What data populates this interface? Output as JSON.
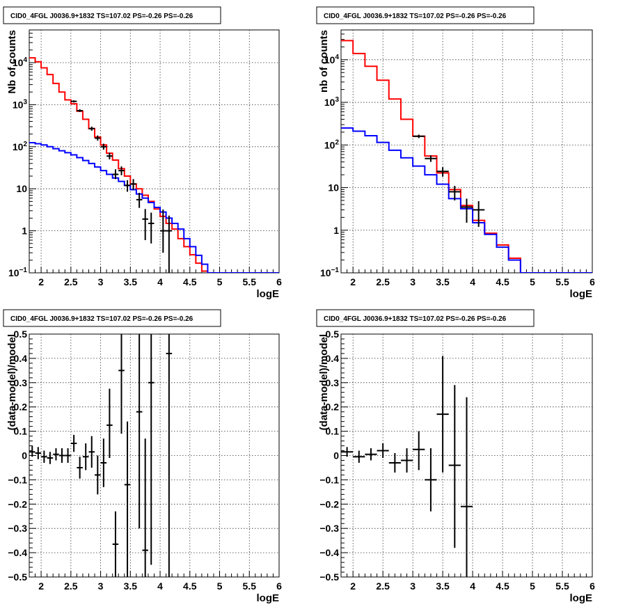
{
  "chart_data": [
    {
      "type": "line",
      "title": "CID0_4FGL J0036.9+1832 TS=107.02 PS=-0.26 PS=-0.26",
      "xlabel": "logE",
      "ylabel": "Nb of counts",
      "xlim": [
        1.8,
        6.0
      ],
      "ylim": [
        0.1,
        60000
      ],
      "yscale": "log",
      "grid": true,
      "xticks": [
        "2",
        "2.5",
        "3",
        "3.5",
        "4",
        "4.5",
        "5",
        "5.5",
        "6"
      ],
      "yticks": [
        "10^-1",
        "1",
        "10",
        "10^2",
        "10^3",
        "10^4"
      ],
      "bin_edges": [
        1.8,
        1.9,
        2.0,
        2.1,
        2.2,
        2.3,
        2.4,
        2.5,
        2.6,
        2.7,
        2.8,
        2.9,
        3.0,
        3.1,
        3.2,
        3.3,
        3.4,
        3.5,
        3.6,
        3.7,
        3.8,
        3.9,
        4.0,
        4.1,
        4.2,
        4.3,
        4.4,
        4.5,
        4.6,
        4.7,
        4.8,
        4.9,
        5.0,
        5.1,
        5.2,
        5.3,
        5.4,
        5.5,
        5.6,
        5.7,
        5.8,
        5.9,
        6.0
      ],
      "series": [
        {
          "color": "#ff0000",
          "style": "step",
          "values": [
            13000,
            10500,
            7500,
            5200,
            3200,
            2000,
            1300,
            1050,
            700,
            450,
            270,
            170,
            110,
            70,
            48,
            30,
            20,
            13,
            10,
            7,
            5,
            3.3,
            2.2,
            1.5,
            1.1,
            0.65,
            0.42,
            0.27,
            0.17,
            0.11,
            0.1,
            0.1,
            0.1,
            0.1,
            0.1,
            0.1,
            0.1,
            0.1,
            0.1,
            0.1,
            0.1,
            0.1
          ]
        },
        {
          "color": "#0000ff",
          "style": "step",
          "values": [
            125,
            118,
            110,
            100,
            90,
            80,
            72,
            64,
            55,
            47,
            40,
            33,
            27,
            22,
            18,
            15,
            12,
            9.5,
            7.5,
            6.0,
            4.7,
            3.6,
            2.8,
            2.0,
            1.5,
            1.1,
            0.65,
            0.42,
            0.26,
            0.16,
            0.1,
            0.1,
            0.1,
            0.1,
            0.1,
            0.1,
            0.1,
            0.1,
            0.1,
            0.1,
            0.1,
            0.1
          ]
        },
        {
          "color": "#000000",
          "style": "errorbar",
          "points": [
            {
              "x": 2.55,
              "y": 1200,
              "xerr": 0.05,
              "ylo": 1130,
              "yhi": 1270
            },
            {
              "x": 2.65,
              "y": 720,
              "xerr": 0.05,
              "ylo": 670,
              "yhi": 775
            },
            {
              "x": 2.85,
              "y": 270,
              "xerr": 0.05,
              "ylo": 240,
              "yhi": 300
            },
            {
              "x": 2.95,
              "y": 160,
              "xerr": 0.05,
              "ylo": 140,
              "yhi": 185
            },
            {
              "x": 3.05,
              "y": 100,
              "xerr": 0.05,
              "ylo": 85,
              "yhi": 118
            },
            {
              "x": 3.15,
              "y": 60,
              "xerr": 0.05,
              "ylo": 50,
              "yhi": 72
            },
            {
              "x": 3.25,
              "y": 22,
              "xerr": 0.05,
              "ylo": 17,
              "yhi": 29
            },
            {
              "x": 3.35,
              "y": 27,
              "xerr": 0.05,
              "ylo": 21,
              "yhi": 34
            },
            {
              "x": 3.45,
              "y": 12,
              "xerr": 0.05,
              "ylo": 8.5,
              "yhi": 16
            },
            {
              "x": 3.55,
              "y": 13,
              "xerr": 0.05,
              "ylo": 9.5,
              "yhi": 17
            },
            {
              "x": 3.65,
              "y": 5.5,
              "xerr": 0.05,
              "ylo": 3.5,
              "yhi": 8
            },
            {
              "x": 3.75,
              "y": 1.9,
              "xerr": 0.05,
              "ylo": 0.6,
              "yhi": 3.3
            },
            {
              "x": 3.85,
              "y": 1.5,
              "xerr": 0.05,
              "ylo": 0.5,
              "yhi": 2.7
            },
            {
              "x": 4.05,
              "y": 1.0,
              "xerr": 0.05,
              "ylo": 0.3,
              "yhi": 3.2
            },
            {
              "x": 4.15,
              "y": 1.0,
              "xerr": 0.05,
              "ylo": 0.1,
              "yhi": 2.3
            }
          ]
        }
      ]
    },
    {
      "type": "line",
      "title": "CID0_4FGL J0036.9+1832 TS=107.02 PS=-0.26 PS=-0.26",
      "xlabel": "logE",
      "ylabel": "nb of counts",
      "xlim": [
        1.8,
        6.0
      ],
      "ylim": [
        0.1,
        50000
      ],
      "yscale": "log",
      "grid": true,
      "xticks": [
        "2",
        "2.5",
        "3",
        "3.5",
        "4",
        "4.5",
        "5",
        "5.5",
        "6"
      ],
      "yticks": [
        "10^-1",
        "1",
        "10",
        "10^2",
        "10^3",
        "10^4"
      ],
      "bin_edges": [
        1.8,
        2.0,
        2.2,
        2.4,
        2.6,
        2.8,
        3.0,
        3.2,
        3.4,
        3.6,
        3.8,
        4.0,
        4.2,
        4.4,
        4.6,
        4.8,
        5.0,
        5.2,
        5.4,
        5.6,
        5.8,
        6.0
      ],
      "series": [
        {
          "color": "#ff0000",
          "style": "step",
          "values": [
            28000,
            14000,
            7000,
            3300,
            1200,
            400,
            160,
            55,
            22,
            9,
            3.8,
            1.7,
            0.85,
            0.45,
            0.22,
            0.1,
            0.1,
            0.1,
            0.1,
            0.1,
            0.1
          ]
        },
        {
          "color": "#0000ff",
          "style": "step",
          "values": [
            250,
            210,
            165,
            115,
            75,
            50,
            32,
            20,
            12,
            5.5,
            3.2,
            1.5,
            0.8,
            0.4,
            0.2,
            0.1,
            0.1,
            0.1,
            0.1,
            0.1,
            0.1
          ]
        },
        {
          "color": "#000000",
          "style": "errorbar",
          "points": [
            {
              "x": 3.1,
              "y": 160,
              "xerr": 0.1,
              "ylo": 145,
              "yhi": 175
            },
            {
              "x": 3.3,
              "y": 48,
              "xerr": 0.1,
              "ylo": 40,
              "yhi": 57
            },
            {
              "x": 3.5,
              "y": 24,
              "xerr": 0.1,
              "ylo": 18,
              "yhi": 30
            },
            {
              "x": 3.7,
              "y": 8,
              "xerr": 0.1,
              "ylo": 5,
              "yhi": 11
            },
            {
              "x": 3.9,
              "y": 3.5,
              "xerr": 0.1,
              "ylo": 1.5,
              "yhi": 5.5
            },
            {
              "x": 4.1,
              "y": 3.0,
              "xerr": 0.1,
              "ylo": 1.2,
              "yhi": 4.8
            }
          ]
        }
      ]
    },
    {
      "type": "scatter",
      "title": "CID0_4FGL J0036.9+1832 TS=107.02 PS=-0.26 PS=-0.26",
      "xlabel": "logE",
      "ylabel": "(data-model)/model",
      "xlim": [
        1.8,
        6.0
      ],
      "ylim": [
        -0.5,
        0.5
      ],
      "grid": true,
      "xticks": [
        "2",
        "2.5",
        "3",
        "3.5",
        "4",
        "4.5",
        "5",
        "5.5",
        "6"
      ],
      "yticks": [
        "−0.5",
        "−0.4",
        "−0.3",
        "−0.2",
        "−0.1",
        "0",
        "0.1",
        "0.2",
        "0.3",
        "0.4",
        "0.5"
      ],
      "series": [
        {
          "color": "#000000",
          "style": "errorbar",
          "points": [
            {
              "x": 1.85,
              "y": 0.015,
              "xerr": 0.05,
              "ylo": -0.005,
              "yhi": 0.04
            },
            {
              "x": 1.95,
              "y": 0.01,
              "xerr": 0.05,
              "ylo": -0.015,
              "yhi": 0.035
            },
            {
              "x": 2.05,
              "y": -0.005,
              "xerr": 0.05,
              "ylo": -0.03,
              "yhi": 0.02
            },
            {
              "x": 2.15,
              "y": -0.01,
              "xerr": 0.05,
              "ylo": -0.035,
              "yhi": 0.015
            },
            {
              "x": 2.25,
              "y": 0.005,
              "xerr": 0.05,
              "ylo": -0.02,
              "yhi": 0.03
            },
            {
              "x": 2.35,
              "y": 0.0,
              "xerr": 0.05,
              "ylo": -0.03,
              "yhi": 0.03
            },
            {
              "x": 2.45,
              "y": 0.0,
              "xerr": 0.05,
              "ylo": -0.03,
              "yhi": 0.03
            },
            {
              "x": 2.55,
              "y": 0.05,
              "xerr": 0.05,
              "ylo": 0.015,
              "yhi": 0.085
            },
            {
              "x": 2.65,
              "y": -0.05,
              "xerr": 0.05,
              "ylo": -0.095,
              "yhi": -0.005
            },
            {
              "x": 2.75,
              "y": -0.005,
              "xerr": 0.05,
              "ylo": -0.06,
              "yhi": 0.05
            },
            {
              "x": 2.85,
              "y": 0.015,
              "xerr": 0.05,
              "ylo": -0.05,
              "yhi": 0.08
            },
            {
              "x": 2.95,
              "y": -0.08,
              "xerr": 0.05,
              "ylo": -0.16,
              "yhi": 0.0
            },
            {
              "x": 3.05,
              "y": -0.03,
              "xerr": 0.05,
              "ylo": -0.13,
              "yhi": 0.07
            },
            {
              "x": 3.15,
              "y": 0.125,
              "xerr": 0.05,
              "ylo": -0.01,
              "yhi": 0.275
            },
            {
              "x": 3.25,
              "y": -0.365,
              "xerr": 0.05,
              "ylo": -0.5,
              "yhi": -0.23
            },
            {
              "x": 3.35,
              "y": 0.35,
              "xerr": 0.05,
              "ylo": 0.09,
              "yhi": 0.5
            },
            {
              "x": 3.45,
              "y": -0.12,
              "xerr": 0.05,
              "ylo": -0.5,
              "yhi": 0.14
            },
            {
              "x": 3.65,
              "y": 0.18,
              "xerr": 0.05,
              "ylo": -0.3,
              "yhi": 0.5
            },
            {
              "x": 3.75,
              "y": -0.39,
              "xerr": 0.05,
              "ylo": -0.5,
              "yhi": 0.07
            },
            {
              "x": 3.85,
              "y": 0.3,
              "xerr": 0.05,
              "ylo": -0.45,
              "yhi": 0.5
            },
            {
              "x": 4.15,
              "y": 0.42,
              "xerr": 0.05,
              "ylo": -0.5,
              "yhi": 0.5
            }
          ]
        }
      ]
    },
    {
      "type": "scatter",
      "title": "CID0_4FGL J0036.9+1832 TS=107.02 PS=-0.26 PS=-0.26",
      "xlabel": "logE",
      "ylabel": "(data-model)/model",
      "xlim": [
        1.8,
        6.0
      ],
      "ylim": [
        -0.5,
        0.5
      ],
      "grid": true,
      "xticks": [
        "2",
        "2.5",
        "3",
        "3.5",
        "4",
        "4.5",
        "5",
        "5.5",
        "6"
      ],
      "yticks": [
        "−0.5",
        "−0.4",
        "−0.3",
        "−0.2",
        "−0.1",
        "0",
        "0.1",
        "0.2",
        "0.3",
        "0.4",
        "0.5"
      ],
      "series": [
        {
          "color": "#000000",
          "style": "errorbar",
          "points": [
            {
              "x": 1.9,
              "y": 0.015,
              "xerr": 0.1,
              "ylo": -0.005,
              "yhi": 0.035
            },
            {
              "x": 2.1,
              "y": -0.005,
              "xerr": 0.1,
              "ylo": -0.03,
              "yhi": 0.02
            },
            {
              "x": 2.3,
              "y": 0.005,
              "xerr": 0.1,
              "ylo": -0.02,
              "yhi": 0.03
            },
            {
              "x": 2.5,
              "y": 0.02,
              "xerr": 0.1,
              "ylo": -0.01,
              "yhi": 0.05
            },
            {
              "x": 2.7,
              "y": -0.03,
              "xerr": 0.1,
              "ylo": -0.07,
              "yhi": 0.01
            },
            {
              "x": 2.9,
              "y": -0.02,
              "xerr": 0.1,
              "ylo": -0.07,
              "yhi": 0.03
            },
            {
              "x": 3.1,
              "y": 0.025,
              "xerr": 0.1,
              "ylo": -0.06,
              "yhi": 0.1
            },
            {
              "x": 3.3,
              "y": -0.1,
              "xerr": 0.1,
              "ylo": -0.23,
              "yhi": 0.03
            },
            {
              "x": 3.5,
              "y": 0.17,
              "xerr": 0.1,
              "ylo": -0.07,
              "yhi": 0.41
            },
            {
              "x": 3.7,
              "y": -0.04,
              "xerr": 0.1,
              "ylo": -0.38,
              "yhi": 0.29
            },
            {
              "x": 3.9,
              "y": -0.21,
              "xerr": 0.1,
              "ylo": -0.5,
              "yhi": 0.24
            }
          ]
        }
      ]
    }
  ]
}
